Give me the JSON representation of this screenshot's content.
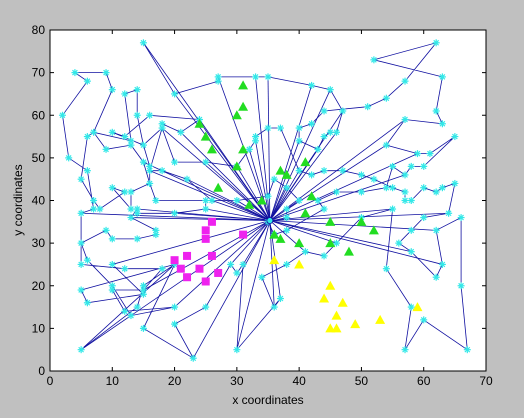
{
  "chart_data": {
    "type": "scatter",
    "title": "",
    "xlabel": "x coordinates",
    "ylabel": "y coordinates",
    "xlim": [
      0,
      70
    ],
    "ylim": [
      0,
      80
    ],
    "xticks": [
      0,
      10,
      20,
      30,
      40,
      50,
      60,
      70
    ],
    "yticks": [
      0,
      10,
      20,
      30,
      40,
      50,
      60,
      70,
      80
    ],
    "grid": false,
    "hub": [
      35.3,
      35.3
    ],
    "colors": {
      "nodes": "#33e8e8",
      "edges": "#1010a0",
      "cluster_green": "#22dd22",
      "cluster_magenta": "#ee22ee",
      "cluster_yellow": "#ffff00",
      "figure_bg": "#c0c0c0",
      "axes_bg": "#ffffff"
    },
    "tour": [
      [
        15,
        77
      ],
      [
        20,
        65
      ],
      [
        27,
        68
      ],
      [
        27,
        69
      ],
      [
        33,
        69
      ],
      [
        35,
        69
      ],
      [
        42,
        67
      ],
      [
        45,
        66
      ],
      [
        47,
        61
      ],
      [
        46,
        56
      ],
      [
        45,
        56
      ],
      [
        44,
        55
      ],
      [
        43,
        52
      ],
      [
        40,
        54
      ],
      [
        40,
        57
      ],
      [
        42,
        58
      ],
      [
        44,
        61
      ],
      [
        51,
        62
      ],
      [
        54,
        64
      ],
      [
        57,
        68
      ],
      [
        62,
        77
      ],
      [
        52,
        73
      ],
      [
        63,
        69
      ],
      [
        62,
        61
      ],
      [
        63,
        58
      ],
      [
        57,
        59
      ],
      [
        54,
        53
      ],
      [
        59,
        51
      ],
      [
        61,
        51
      ],
      [
        65,
        55
      ],
      [
        60,
        48
      ],
      [
        58,
        48
      ],
      [
        57,
        46
      ],
      [
        55,
        48
      ],
      [
        54,
        43
      ],
      [
        50,
        42
      ],
      [
        46,
        42
      ],
      [
        43,
        40
      ],
      [
        44,
        38
      ],
      [
        38,
        33
      ],
      [
        36,
        32
      ],
      [
        35,
        35
      ],
      [
        38,
        36
      ],
      [
        38,
        38
      ],
      [
        40,
        40
      ],
      [
        38,
        43
      ],
      [
        36,
        45
      ],
      [
        35,
        41
      ],
      [
        30,
        40
      ],
      [
        26,
        40
      ],
      [
        22,
        45
      ],
      [
        18,
        47
      ],
      [
        16,
        47
      ],
      [
        18,
        57
      ],
      [
        18,
        58
      ],
      [
        21,
        56
      ],
      [
        24,
        59
      ],
      [
        16,
        60
      ],
      [
        12,
        55
      ],
      [
        10,
        56
      ],
      [
        15,
        53
      ],
      [
        16,
        48
      ],
      [
        16,
        44
      ],
      [
        13,
        42
      ],
      [
        13,
        38
      ],
      [
        10,
        43
      ],
      [
        12,
        42
      ],
      [
        8,
        38
      ],
      [
        7,
        40
      ],
      [
        5,
        45
      ],
      [
        6,
        55
      ],
      [
        7,
        56
      ],
      [
        9,
        52
      ],
      [
        13,
        53
      ],
      [
        15,
        49
      ],
      [
        16,
        44
      ],
      [
        17,
        40
      ],
      [
        25,
        40
      ],
      [
        25,
        38
      ],
      [
        20,
        37
      ],
      [
        14,
        37
      ],
      [
        14,
        38
      ],
      [
        13,
        36
      ],
      [
        17,
        33
      ],
      [
        17,
        32
      ],
      [
        14,
        31
      ],
      [
        10,
        31
      ],
      [
        9,
        33
      ],
      [
        5,
        30
      ],
      [
        5,
        25
      ],
      [
        12,
        24
      ],
      [
        18,
        24
      ],
      [
        15,
        19
      ],
      [
        10,
        19
      ],
      [
        12,
        14
      ],
      [
        20,
        15
      ],
      [
        13,
        13
      ],
      [
        10,
        20
      ],
      [
        6,
        26
      ],
      [
        5,
        30
      ],
      [
        5,
        37
      ],
      [
        7,
        38
      ],
      [
        6,
        47
      ],
      [
        3,
        50
      ],
      [
        2,
        60
      ],
      [
        6,
        68
      ],
      [
        4,
        70
      ],
      [
        9,
        70
      ],
      [
        10,
        66
      ],
      [
        7,
        56
      ],
      [
        13,
        54
      ],
      [
        12,
        65
      ],
      [
        14,
        66
      ],
      [
        14,
        60
      ],
      [
        15,
        53
      ],
      [
        18,
        57
      ],
      [
        20,
        49
      ],
      [
        25,
        49
      ],
      [
        30,
        48
      ],
      [
        33,
        54
      ],
      [
        33,
        55
      ],
      [
        35,
        57
      ],
      [
        37,
        57
      ],
      [
        40,
        47
      ],
      [
        42,
        46
      ],
      [
        44,
        47
      ],
      [
        47,
        47
      ],
      [
        50,
        46
      ],
      [
        52,
        45
      ],
      [
        55,
        43
      ],
      [
        57,
        42
      ],
      [
        57,
        40
      ],
      [
        58,
        40
      ],
      [
        60,
        43
      ],
      [
        62,
        42
      ],
      [
        63,
        43
      ],
      [
        65,
        44
      ],
      [
        64,
        37
      ],
      [
        60,
        36
      ],
      [
        58,
        33
      ],
      [
        56,
        30
      ],
      [
        58,
        28
      ],
      [
        62,
        22
      ],
      [
        63,
        25
      ],
      [
        62,
        33
      ],
      [
        66,
        36
      ],
      [
        66,
        20
      ],
      [
        67,
        5
      ],
      [
        60,
        12
      ],
      [
        57,
        5
      ],
      [
        58,
        15
      ],
      [
        54,
        24
      ],
      [
        55,
        38
      ],
      [
        50,
        36
      ],
      [
        46,
        30
      ],
      [
        44,
        27
      ],
      [
        41,
        28
      ],
      [
        38,
        25
      ],
      [
        34,
        22
      ],
      [
        36,
        15
      ],
      [
        37,
        17
      ],
      [
        30,
        5
      ],
      [
        31,
        25
      ],
      [
        30,
        23
      ],
      [
        29,
        25
      ],
      [
        25,
        15
      ],
      [
        20,
        11
      ],
      [
        23,
        3
      ],
      [
        15,
        10
      ],
      [
        20,
        25
      ],
      [
        15,
        20
      ],
      [
        14,
        15
      ],
      [
        5,
        5
      ],
      [
        20,
        25
      ],
      [
        5,
        19
      ],
      [
        6,
        16
      ],
      [
        15,
        18
      ],
      [
        10,
        25
      ]
    ],
    "hub_targets": [
      [
        15,
        77
      ],
      [
        27,
        69
      ],
      [
        33,
        69
      ],
      [
        35,
        69
      ],
      [
        42,
        67
      ],
      [
        45,
        66
      ],
      [
        46,
        56
      ],
      [
        47,
        61
      ],
      [
        40,
        54
      ],
      [
        43,
        52
      ],
      [
        57,
        59
      ],
      [
        54,
        53
      ],
      [
        59,
        51
      ],
      [
        57,
        46
      ],
      [
        55,
        38
      ],
      [
        62,
        33
      ],
      [
        64,
        37
      ],
      [
        63,
        25
      ],
      [
        58,
        28
      ],
      [
        46,
        30
      ],
      [
        41,
        28
      ],
      [
        37,
        17
      ],
      [
        36,
        15
      ],
      [
        30,
        5
      ],
      [
        31,
        25
      ],
      [
        29,
        25
      ],
      [
        23,
        3
      ],
      [
        20,
        15
      ],
      [
        15,
        19
      ],
      [
        10,
        25
      ],
      [
        5,
        5
      ],
      [
        5,
        37
      ],
      [
        13,
        36
      ],
      [
        14,
        38
      ],
      [
        20,
        37
      ],
      [
        25,
        38
      ],
      [
        30,
        40
      ],
      [
        26,
        40
      ],
      [
        22,
        45
      ],
      [
        16,
        47
      ],
      [
        15,
        49
      ],
      [
        18,
        57
      ],
      [
        21,
        56
      ],
      [
        24,
        59
      ],
      [
        20,
        65
      ],
      [
        33,
        54
      ],
      [
        25,
        49
      ],
      [
        30,
        48
      ],
      [
        32,
        52
      ],
      [
        38,
        43
      ],
      [
        40,
        47
      ]
    ],
    "series": [
      {
        "color": "green",
        "marker": "triangle",
        "points": [
          [
            31,
            67
          ],
          [
            31,
            62
          ],
          [
            24,
            58
          ],
          [
            25,
            55
          ],
          [
            30,
            60
          ],
          [
            26,
            52
          ],
          [
            31,
            52
          ],
          [
            30,
            48
          ],
          [
            37,
            47
          ],
          [
            38,
            46
          ],
          [
            41,
            49
          ],
          [
            27,
            43
          ],
          [
            32,
            39
          ],
          [
            34,
            40
          ],
          [
            42,
            41
          ],
          [
            41,
            37
          ],
          [
            37,
            31
          ],
          [
            40,
            30
          ],
          [
            45,
            30
          ],
          [
            48,
            28
          ],
          [
            45,
            35
          ],
          [
            50,
            35
          ],
          [
            52,
            33
          ],
          [
            36,
            32
          ]
        ]
      },
      {
        "color": "magenta",
        "marker": "square",
        "points": [
          [
            26,
            35
          ],
          [
            25,
            33
          ],
          [
            25,
            31
          ],
          [
            31,
            32
          ],
          [
            26,
            27
          ],
          [
            22,
            27
          ],
          [
            20,
            26
          ],
          [
            21,
            24
          ],
          [
            22,
            22
          ],
          [
            24,
            24
          ],
          [
            25,
            21
          ],
          [
            27,
            23
          ]
        ]
      },
      {
        "color": "yellow",
        "marker": "triangle",
        "points": [
          [
            36,
            26
          ],
          [
            40,
            25
          ],
          [
            45,
            20
          ],
          [
            44,
            17
          ],
          [
            47,
            16
          ],
          [
            46,
            13
          ],
          [
            45,
            10
          ],
          [
            46,
            10
          ],
          [
            49,
            11
          ],
          [
            53,
            12
          ],
          [
            59,
            15
          ]
        ]
      }
    ]
  }
}
